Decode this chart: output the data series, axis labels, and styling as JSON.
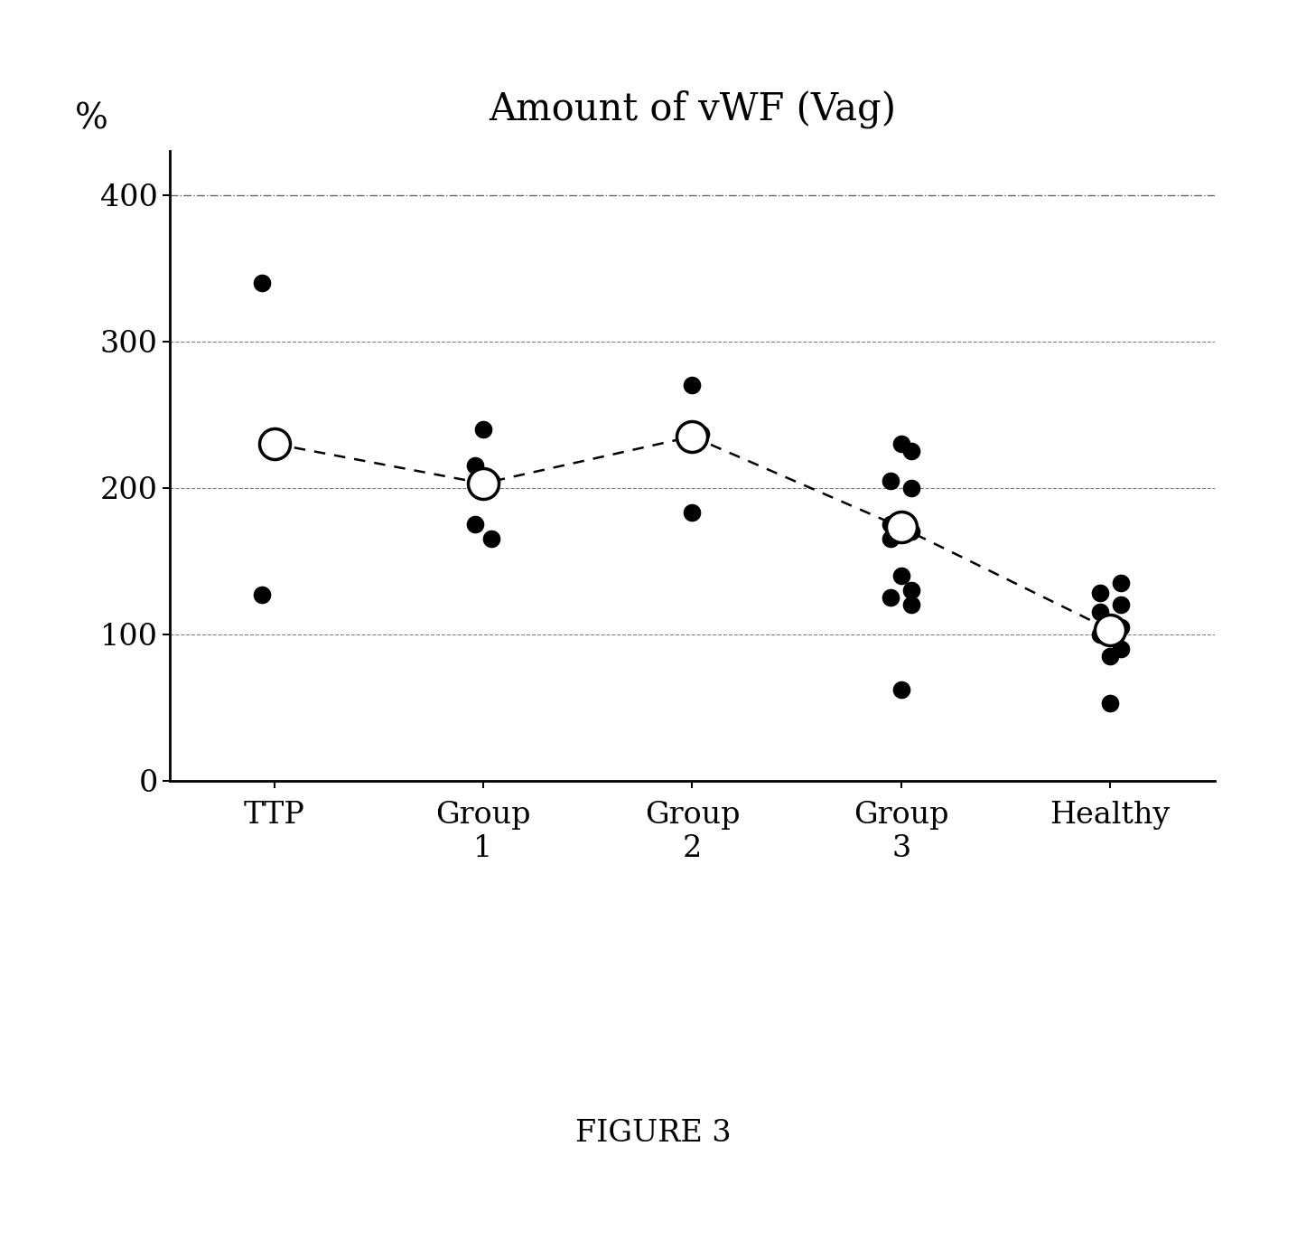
{
  "title": "Amount of vWF (Vag)",
  "ylabel": "%",
  "categories": [
    "TTP",
    "Group\n1",
    "Group\n2",
    "Group\n3",
    "Healthy"
  ],
  "x_positions": [
    0,
    1,
    2,
    3,
    4
  ],
  "mean_values": [
    230,
    203,
    235,
    173,
    103
  ],
  "scatter_data": {
    "TTP": [
      340,
      127
    ],
    "Group 1": [
      240,
      215,
      205,
      200,
      175,
      165
    ],
    "Group 2": [
      270,
      237,
      183
    ],
    "Group 3": [
      230,
      225,
      205,
      200,
      175,
      170,
      165,
      140,
      130,
      125,
      120,
      62
    ],
    "Healthy": [
      135,
      128,
      120,
      115,
      105,
      100,
      90,
      85,
      53
    ]
  },
  "scatter_x_offsets": {
    "TTP": [
      -0.06,
      -0.06
    ],
    "Group 1": [
      0.0,
      -0.04,
      0.04,
      0.0,
      -0.04,
      0.04
    ],
    "Group 2": [
      0.0,
      0.04,
      0.0
    ],
    "Group 3": [
      0.0,
      0.05,
      -0.05,
      0.05,
      -0.05,
      0.05,
      -0.05,
      0.0,
      0.05,
      -0.05,
      0.05,
      0.0
    ],
    "Healthy": [
      0.05,
      -0.05,
      0.05,
      -0.05,
      0.05,
      -0.05,
      0.05,
      0.0,
      0.0
    ]
  },
  "ylim": [
    0,
    430
  ],
  "yticks": [
    0,
    100,
    200,
    300,
    400
  ],
  "grid_lines": [
    100,
    200,
    300,
    400
  ],
  "background_color": "#ffffff",
  "dot_color": "#000000",
  "mean_dot_color": "#ffffff",
  "mean_dot_edgecolor": "#000000",
  "figsize": [
    14.46,
    13.93
  ],
  "figure_caption": "FIGURE 3"
}
